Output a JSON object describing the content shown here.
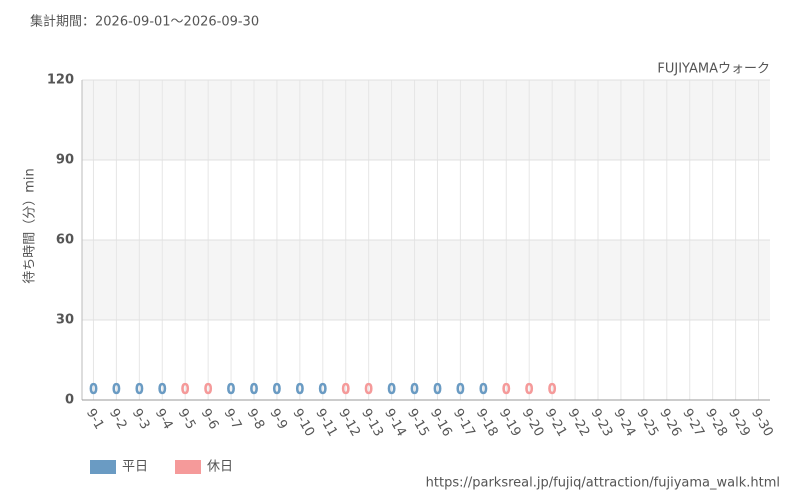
{
  "chart_data": {
    "type": "bar",
    "title": "集計期間：2026-09-01～2026-09-30",
    "subtitle": "FUJIYAMAウォーク",
    "y_label": "待ち時間（分）min",
    "source": "https://parksreal.jp/fujiq/attraction/fujiyama_walk.html",
    "categories": [
      "9-1",
      "9-2",
      "9-3",
      "9-4",
      "9-5",
      "9-6",
      "9-7",
      "9-8",
      "9-9",
      "9-10",
      "9-11",
      "9-12",
      "9-13",
      "9-14",
      "9-15",
      "9-16",
      "9-17",
      "9-18",
      "9-19",
      "9-20",
      "9-21",
      "9-22",
      "9-23",
      "9-24",
      "9-25",
      "9-26",
      "9-27",
      "9-28",
      "9-29",
      "9-30"
    ],
    "category_colors": [
      "#555",
      "#555",
      "#555",
      "#555",
      "#f08080",
      "#f08080",
      "#555",
      "#555",
      "#555",
      "#555",
      "#555",
      "#f08080",
      "#f08080",
      "#555",
      "#555",
      "#555",
      "#555",
      "#555",
      "#f08080",
      "#f08080",
      "#f08080",
      "#f08080",
      "#f08080",
      "#555",
      "#555",
      "#f08080",
      "#f08080",
      "#555",
      "#555",
      "#555"
    ],
    "series": [
      {
        "name": "平日",
        "color": "#6a9bc3",
        "values": [
          0,
          0,
          0,
          0,
          null,
          null,
          0,
          0,
          0,
          0,
          0,
          null,
          null,
          0,
          0,
          0,
          0,
          0,
          null,
          null,
          null,
          null,
          null,
          null,
          null,
          null,
          null,
          null,
          null,
          null
        ]
      },
      {
        "name": "休日",
        "color": "#f59a9a",
        "values": [
          null,
          null,
          null,
          null,
          0,
          0,
          null,
          null,
          null,
          null,
          null,
          0,
          0,
          null,
          null,
          null,
          null,
          null,
          0,
          0,
          0,
          null,
          null,
          null,
          null,
          null,
          null,
          null,
          null,
          null
        ]
      }
    ],
    "ylim": [
      0,
      120
    ],
    "yticks": [
      0,
      30,
      60,
      90,
      120
    ],
    "grid": true,
    "legend": "bottom-left"
  }
}
